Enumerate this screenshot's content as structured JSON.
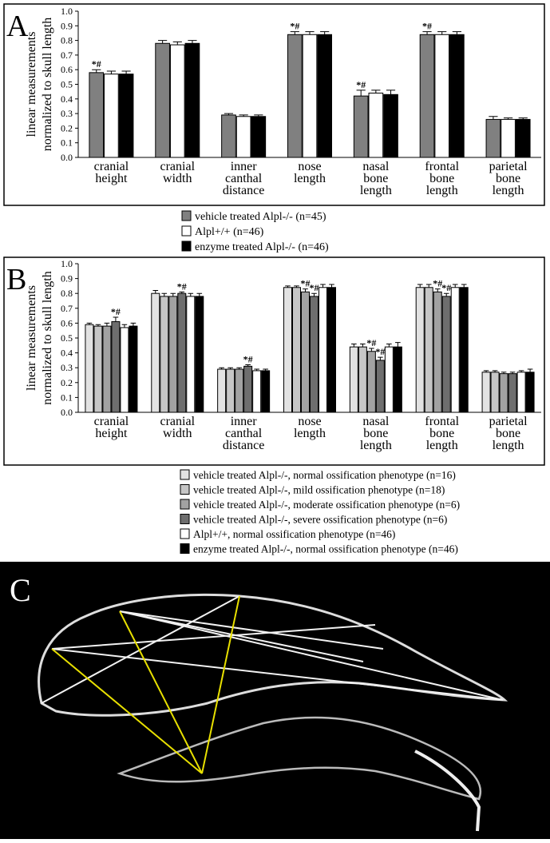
{
  "chart_data": [
    {
      "type": "bar",
      "panel": "A",
      "ylabel": [
        "linear measurements",
        "normalized to skull length"
      ],
      "categories": [
        "cranial height",
        "cranial width",
        "inner canthal distance",
        "nose length",
        "nasal bone length",
        "frontal bone length",
        "parietal bone length"
      ],
      "ylim": [
        0,
        1
      ],
      "yticks": [
        {
          "value": 0,
          "label": "0.0"
        },
        0.1,
        0.2,
        0.3,
        0.4,
        0.5,
        0.6,
        0.7,
        0.8,
        0.9,
        {
          "value": 1,
          "label": "1.0"
        }
      ],
      "series": [
        {
          "name": "vehicle treated Alpl-/- (n=45)",
          "color": "#808080",
          "values": [
            0.58,
            0.78,
            0.29,
            0.84,
            0.42,
            0.84,
            0.26
          ],
          "errors": [
            0.02,
            0.02,
            0.01,
            0.02,
            0.04,
            0.02,
            0.02
          ],
          "markers": [
            "*#",
            null,
            null,
            "*#",
            "*#",
            "*#",
            null
          ]
        },
        {
          "name": "Alpl+/+ (n=46)",
          "color": "#ffffff",
          "values": [
            0.57,
            0.77,
            0.28,
            0.84,
            0.44,
            0.84,
            0.26
          ],
          "errors": [
            0.02,
            0.02,
            0.01,
            0.02,
            0.02,
            0.02,
            0.01
          ],
          "markers": [
            null,
            null,
            null,
            null,
            null,
            null,
            null
          ]
        },
        {
          "name": "enzyme treated Alpl-/- (n=46)",
          "color": "#000000",
          "values": [
            0.57,
            0.78,
            0.28,
            0.84,
            0.43,
            0.84,
            0.26
          ],
          "errors": [
            0.02,
            0.02,
            0.01,
            0.02,
            0.03,
            0.02,
            0.01
          ],
          "markers": [
            null,
            null,
            null,
            null,
            null,
            null,
            null
          ]
        }
      ]
    },
    {
      "type": "bar",
      "panel": "B",
      "ylabel": [
        "linear measurements",
        "normalized to skull length"
      ],
      "categories": [
        "cranial height",
        "cranial width",
        "inner canthal distance",
        "nose length",
        "nasal bone length",
        "frontal bone length",
        "parietal bone length"
      ],
      "ylim": [
        0,
        1
      ],
      "yticks": [
        {
          "value": 0,
          "label": "0.0"
        },
        0.1,
        0.2,
        0.3,
        0.4,
        0.5,
        0.6,
        0.7,
        0.8,
        0.9,
        {
          "value": 1,
          "label": "1.0"
        }
      ],
      "series": [
        {
          "name": "vehicle treated Alpl-/-, normal ossification phenotype (n=16)",
          "color": "#e2e2e2",
          "values": [
            0.59,
            0.8,
            0.29,
            0.84,
            0.44,
            0.84,
            0.27
          ],
          "errors": [
            0.01,
            0.02,
            0.01,
            0.01,
            0.02,
            0.02,
            0.01
          ],
          "markers": [
            null,
            null,
            null,
            null,
            null,
            null,
            null
          ]
        },
        {
          "name": "vehicle treated Alpl-/-, mild ossification phenotype (n=18)",
          "color": "#c6c6c6",
          "values": [
            0.58,
            0.78,
            0.29,
            0.84,
            0.44,
            0.84,
            0.27
          ],
          "errors": [
            0.01,
            0.02,
            0.01,
            0.01,
            0.02,
            0.02,
            0.01
          ],
          "markers": [
            null,
            null,
            null,
            null,
            null,
            null,
            null
          ]
        },
        {
          "name": "vehicle treated Alpl-/-, moderate ossification phenotype (n=6)",
          "color": "#a2a2a2",
          "values": [
            0.58,
            0.78,
            0.29,
            0.81,
            0.41,
            0.81,
            0.26
          ],
          "errors": [
            0.02,
            0.02,
            0.01,
            0.02,
            0.02,
            0.02,
            0.01
          ],
          "markers": [
            null,
            null,
            null,
            "*#",
            "*#",
            "*#",
            null
          ]
        },
        {
          "name": "vehicle treated Alpl-/-, severe ossification phenotype (n=6)",
          "color": "#6e6e6e",
          "values": [
            0.61,
            0.8,
            0.31,
            0.78,
            0.35,
            0.78,
            0.26
          ],
          "errors": [
            0.03,
            0.01,
            0.01,
            0.02,
            0.02,
            0.02,
            0.01
          ],
          "markers": [
            "*#",
            "*#",
            "*#",
            "*#",
            "*#",
            "*#",
            null
          ]
        },
        {
          "name": "Alpl+/+, normal ossification phenotype (n=46)",
          "color": "#ffffff",
          "values": [
            0.57,
            0.78,
            0.28,
            0.84,
            0.44,
            0.84,
            0.27
          ],
          "errors": [
            0.02,
            0.02,
            0.01,
            0.02,
            0.02,
            0.02,
            0.01
          ],
          "markers": [
            null,
            null,
            null,
            null,
            null,
            null,
            null
          ]
        },
        {
          "name": "enzyme treated Alpl-/-, normal ossification phenotype (n=46)",
          "color": "#000000",
          "values": [
            0.58,
            0.78,
            0.28,
            0.84,
            0.44,
            0.84,
            0.27
          ],
          "errors": [
            0.02,
            0.02,
            0.01,
            0.02,
            0.03,
            0.02,
            0.02
          ],
          "markers": [
            null,
            null,
            null,
            null,
            null,
            null,
            null
          ]
        }
      ]
    }
  ],
  "panel_c": {
    "label": "C"
  }
}
